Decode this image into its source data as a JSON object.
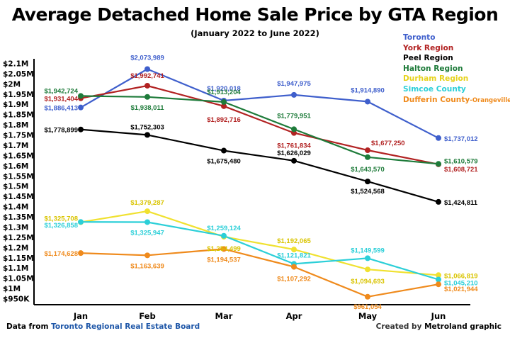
{
  "chart_data": {
    "type": "line",
    "title": "Average Detached Home Sale Price by GTA Region",
    "subtitle": "(January 2022 to June 2022)",
    "categories": [
      "Jan",
      "Feb",
      "Mar",
      "Apr",
      "May",
      "Jun"
    ],
    "ylim": [
      950000,
      2100000
    ],
    "yticks": [
      950000,
      1000000,
      1050000,
      1100000,
      1150000,
      1200000,
      1250000,
      1300000,
      1350000,
      1400000,
      1450000,
      1500000,
      1550000,
      1600000,
      1650000,
      1700000,
      1750000,
      1800000,
      1850000,
      1900000,
      1950000,
      2000000,
      2050000,
      2100000
    ],
    "ytick_labels": [
      "$950K",
      "$1M",
      "$1.05M",
      "$1.1M",
      "$1.15M",
      "$1.2M",
      "$1.25M",
      "$1.3M",
      "$1.35M",
      "$1.4M",
      "$1.45M",
      "$1.5M",
      "$1.55M",
      "$1.6M",
      "$1.65M",
      "$1.7M",
      "$1.75M",
      "$1.8M",
      "$1.85M",
      "$1.9M",
      "$1.95M",
      "$2M",
      "$2.05M",
      "$2.1M"
    ],
    "grid": false,
    "legend_position": "top-right",
    "series": [
      {
        "name": "Toronto",
        "color": "#3f5fcc",
        "values": [
          1886413,
          2073989,
          1920018,
          1947975,
          1914890,
          1737012
        ],
        "labels": [
          "$1,886,413",
          "$2,073,989",
          "$1,920,018",
          "$1,947,975",
          "$1,914,890",
          "$1,737,012"
        ]
      },
      {
        "name": "York Region",
        "color": "#b22222",
        "values": [
          1931404,
          1992741,
          1892716,
          1761834,
          1677250,
          1608721
        ],
        "labels": [
          "$1,931,404",
          "$1,992,741",
          "$1,892,716",
          "$1,761,834",
          "$1,677,250",
          "$1,608,721"
        ]
      },
      {
        "name": "Peel Region",
        "color": "#000000",
        "values": [
          1778899,
          1752303,
          1675480,
          1626029,
          1524568,
          1424811
        ],
        "labels": [
          "$1,778,899",
          "$1,752,303",
          "$1,675,480",
          "$1,626,029",
          "$1,524,568",
          "$1,424,811"
        ]
      },
      {
        "name": "Halton Region",
        "color": "#1e7b3a",
        "values": [
          1942724,
          1938011,
          1913204,
          1779951,
          1643570,
          1610579
        ],
        "labels": [
          "$1,942,724",
          "$1,938,011",
          "$1,913,204",
          "$1,779,951",
          "$1,643,570",
          "$1,610,579"
        ]
      },
      {
        "name": "Durham Region",
        "color": "#f0e130",
        "values": [
          1325708,
          1379287,
          1254499,
          1192065,
          1094693,
          1066819
        ],
        "labels": [
          "$1,325,708",
          "$1,379,287",
          "$1,254,499",
          "$1,192,065",
          "$1,094,693",
          "$1,066,819"
        ]
      },
      {
        "name": "Simcoe County",
        "color": "#2ccfd8",
        "values": [
          1326858,
          1325947,
          1259124,
          1121821,
          1149599,
          1045210
        ],
        "labels": [
          "$1,326,858",
          "$1,325,947",
          "$1,259,124",
          "$1,121,821",
          "$1,149,599",
          "$1,045,210"
        ]
      },
      {
        "name": "Dufferin County",
        "name_suffix": "-Orangeville",
        "color": "#ef8a1c",
        "values": [
          1174628,
          1163639,
          1194537,
          1107292,
          961054,
          1021944
        ],
        "labels": [
          "$1,174,628",
          "$1,163,639",
          "$1,194,537",
          "$1,107,292",
          "$961,054",
          "$1,021,944"
        ]
      }
    ]
  },
  "footer": {
    "source_prefix": "Data from",
    "source_link": "Toronto Regional Real Estate Board",
    "credit_prefix": "Created by",
    "credit_name": "Metroland graphic"
  }
}
